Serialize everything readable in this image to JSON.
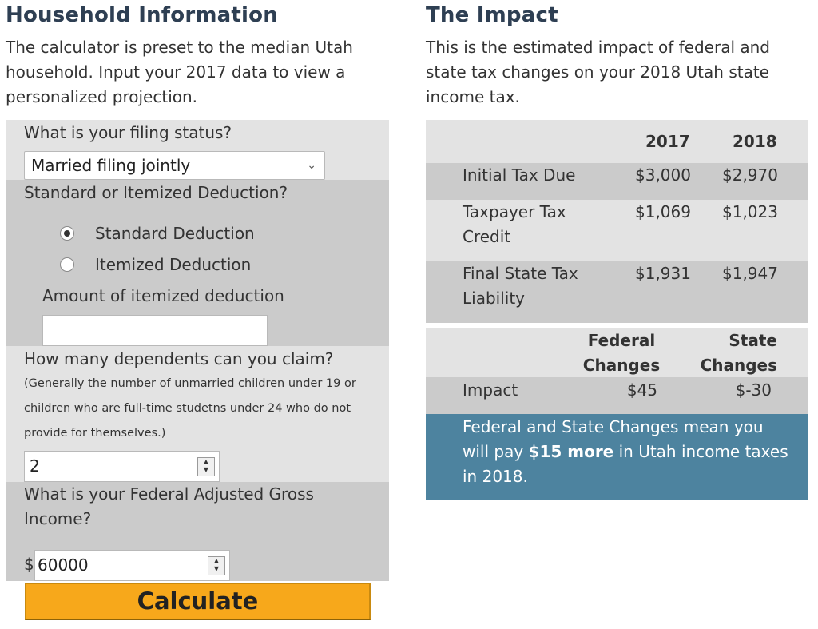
{
  "household": {
    "title": "Household Information",
    "intro": "The calculator is preset to the median Utah household. Input your 2017 data to view a personalized projection.",
    "filing_status": {
      "label": "What is your filing status?",
      "value": "Married filing jointly"
    },
    "deduction": {
      "label": "Standard or Itemized Deduction?",
      "options": [
        "Standard Deduction",
        "Itemized Deduction"
      ],
      "selected": "Standard Deduction",
      "amount_label": "Amount of itemized deduction",
      "amount_value": ""
    },
    "dependents": {
      "label": "How many dependents can you claim?",
      "note": "(Generally the number of unmarried children under 19 or children who are full-time studetns under 24 who do not provide for themselves.)",
      "value": "2"
    },
    "agi": {
      "label": "What is your Federal Adjusted Gross Income?",
      "currency": "$",
      "value": "60000"
    },
    "calculate_label": "Calculate"
  },
  "impact": {
    "title": "The Impact",
    "intro": "This is the estimated impact of federal and state tax changes on your 2018 Utah state income tax.",
    "table1": {
      "headers": [
        "2017",
        "2018"
      ],
      "rows": [
        {
          "label": "Initial Tax Due",
          "v2017": "$3,000",
          "v2018": "$2,970"
        },
        {
          "label": "Taxpayer Tax Credit",
          "v2017": "$1,069",
          "v2018": "$1,023"
        },
        {
          "label": "Final State Tax Liability",
          "v2017": "$1,931",
          "v2018": "$1,947"
        }
      ]
    },
    "table2": {
      "headers": [
        "Federal Changes",
        "State Changes"
      ],
      "row": {
        "label": "Impact",
        "federal": "$45",
        "state": "$-30"
      }
    },
    "summary": {
      "before": "Federal and State Changes mean you will pay",
      "highlight": "$15 more",
      "after": "in Utah income taxes in 2018."
    }
  },
  "colors": {
    "heading": "#2e3f53",
    "band_light": "#e3e3e3",
    "band_dark": "#cbcbcb",
    "banner": "#4d839f",
    "button": "#f7a81b"
  }
}
